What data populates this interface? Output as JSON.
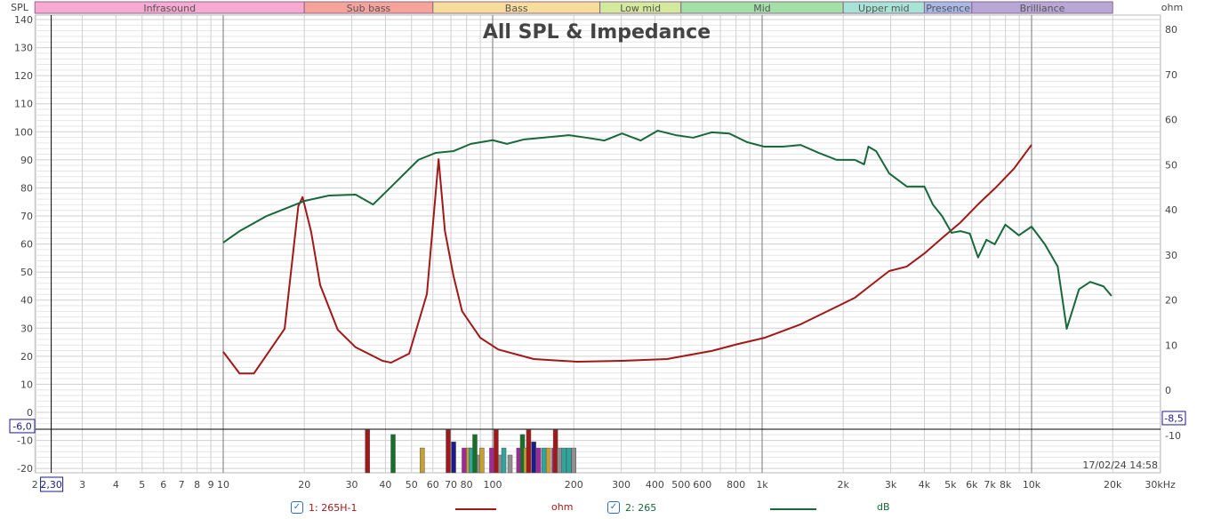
{
  "chart_data": {
    "type": "line",
    "title": "All SPL & Impedance",
    "x_unit_label": "kHz",
    "left_axis_label": "SPL",
    "right_axis_label": "ohm",
    "x_scale": "log",
    "xlim": [
      2,
      30000
    ],
    "ylim_left": [
      -22,
      142
    ],
    "ylim_right": [
      -18,
      82
    ],
    "x_ticks": [
      {
        "v": 2,
        "t": "2"
      },
      {
        "v": 3,
        "t": "3"
      },
      {
        "v": 4,
        "t": "4"
      },
      {
        "v": 5,
        "t": "5"
      },
      {
        "v": 6,
        "t": "6"
      },
      {
        "v": 7,
        "t": "7"
      },
      {
        "v": 8,
        "t": "8"
      },
      {
        "v": 9,
        "t": "9"
      },
      {
        "v": 10,
        "t": "10"
      },
      {
        "v": 20,
        "t": "20"
      },
      {
        "v": 30,
        "t": "30"
      },
      {
        "v": 40,
        "t": "40"
      },
      {
        "v": 50,
        "t": "50"
      },
      {
        "v": 60,
        "t": "60"
      },
      {
        "v": 70,
        "t": "70"
      },
      {
        "v": 80,
        "t": "80"
      },
      {
        "v": 100,
        "t": "100"
      },
      {
        "v": 200,
        "t": "200"
      },
      {
        "v": 300,
        "t": "300"
      },
      {
        "v": 400,
        "t": "400"
      },
      {
        "v": 500,
        "t": "500"
      },
      {
        "v": 600,
        "t": "600"
      },
      {
        "v": 800,
        "t": "800"
      },
      {
        "v": 1000,
        "t": "1k"
      },
      {
        "v": 2000,
        "t": "2k"
      },
      {
        "v": 3000,
        "t": "3k"
      },
      {
        "v": 4000,
        "t": "4k"
      },
      {
        "v": 5000,
        "t": "5k"
      },
      {
        "v": 6000,
        "t": "6k"
      },
      {
        "v": 7000,
        "t": "7k"
      },
      {
        "v": 8000,
        "t": "8k"
      },
      {
        "v": 10000,
        "t": "10k"
      },
      {
        "v": 20000,
        "t": "20k"
      },
      {
        "v": 30000,
        "t": "30kHz"
      }
    ],
    "left_ticks": [
      140,
      130,
      120,
      110,
      100,
      90,
      80,
      70,
      60,
      50,
      40,
      30,
      20,
      10,
      0,
      -10,
      -20
    ],
    "right_ticks": [
      80,
      70,
      60,
      50,
      40,
      30,
      20,
      10,
      0,
      -10
    ],
    "bands": [
      {
        "name": "Infrasound",
        "from": 2,
        "to": 20,
        "color": "#f7a8d3"
      },
      {
        "name": "Sub bass",
        "from": 20,
        "to": 60,
        "color": "#f6a39c"
      },
      {
        "name": "Bass",
        "from": 60,
        "to": 250,
        "color": "#f7dd9c"
      },
      {
        "name": "Low mid",
        "from": 250,
        "to": 500,
        "color": "#d3ea9c"
      },
      {
        "name": "Mid",
        "from": 500,
        "to": 2000,
        "color": "#a2e0a8"
      },
      {
        "name": "Upper mid",
        "from": 2000,
        "to": 4000,
        "color": "#a7e4d6"
      },
      {
        "name": "Presence",
        "from": 4000,
        "to": 6000,
        "color": "#a9b8e6"
      },
      {
        "name": "Brilliance",
        "from": 6000,
        "to": 20000,
        "color": "#b7a6d6"
      }
    ],
    "series": [
      {
        "name": "1: 265H-1",
        "unit": "ohm",
        "axis": "right",
        "color": "#a01818",
        "x": [
          10,
          11.5,
          13,
          16.9,
          19,
          19.7,
          21.2,
          22.9,
          26.6,
          31,
          39,
          42,
          49,
          57,
          63,
          66.5,
          71.5,
          77,
          90,
          105,
          142,
          206,
          302,
          444,
          650,
          810,
          1020,
          1390,
          1890,
          2210,
          2550,
          2960,
          3440,
          4000,
          4650,
          5450,
          6330,
          7300,
          8600,
          10000
        ],
        "y": [
          8.5,
          3.7,
          3.7,
          13.6,
          40.8,
          42.8,
          35.1,
          23.3,
          13.4,
          9.5,
          6.5,
          6.1,
          8.1,
          21.3,
          51.2,
          35.3,
          25.4,
          17.5,
          11.6,
          9.0,
          6.9,
          6.3,
          6.5,
          6.9,
          8.7,
          10.2,
          11.6,
          14.6,
          18.5,
          20.5,
          23.4,
          26.4,
          27.4,
          30.3,
          33.7,
          37.2,
          41.2,
          44.7,
          49.1,
          54.4
        ]
      },
      {
        "name": "2: 265",
        "unit": "dB",
        "axis": "left",
        "color": "#17683a",
        "x": [
          10,
          11.5,
          14.5,
          16.9,
          20.1,
          24.7,
          31,
          36,
          42,
          53,
          61.5,
          71.5,
          83,
          100,
          113,
          131,
          192,
          223,
          260,
          302,
          354,
          410,
          478,
          555,
          650,
          755,
          880,
          1020,
          1190,
          1390,
          1620,
          1890,
          2210,
          2390,
          2480,
          2650,
          2960,
          3440,
          4000,
          4300,
          4650,
          5050,
          5450,
          5900,
          6330,
          6800,
          7300,
          7990,
          8970,
          10000,
          11200,
          12500,
          13500,
          15000,
          16500,
          18500,
          19800
        ],
        "y": [
          60.5,
          64.6,
          70,
          72.5,
          75.4,
          77.3,
          77.6,
          74.1,
          80.4,
          90,
          92.5,
          93.1,
          95.7,
          97,
          95.7,
          97.3,
          98.8,
          97.9,
          96.9,
          99.4,
          96.9,
          100.4,
          98.8,
          97.9,
          99.8,
          99.4,
          96.3,
          94.7,
          94.7,
          95.3,
          92.5,
          90,
          90,
          88.4,
          94.7,
          93.1,
          85.2,
          80.5,
          80.5,
          74.1,
          70,
          64,
          64.6,
          63.7,
          55.2,
          61.5,
          59.9,
          66.9,
          63.1,
          66.2,
          59.9,
          52,
          29.8,
          43.9,
          46.5,
          44.9,
          41.5
        ]
      }
    ],
    "bars": [
      {
        "f": 34.3,
        "v": -6.3,
        "c": "#a01818"
      },
      {
        "f": 42.7,
        "v": -7.9,
        "c": "#17702a"
      },
      {
        "f": 54.8,
        "v": -12.7,
        "c": "#c8a030"
      },
      {
        "f": 68.4,
        "v": -6.3,
        "c": "#a01818"
      },
      {
        "f": 71.6,
        "v": -10.5,
        "c": "#1a1a8c"
      },
      {
        "f": 78.4,
        "v": -12.7,
        "c": "#a0289a"
      },
      {
        "f": 81.4,
        "v": -12.7,
        "c": "#c8a030"
      },
      {
        "f": 83.3,
        "v": -12.7,
        "c": "#2aa8a0"
      },
      {
        "f": 85.9,
        "v": -7.9,
        "c": "#17702a"
      },
      {
        "f": 89.2,
        "v": -15.2,
        "c": "#909090"
      },
      {
        "f": 91.2,
        "v": -12.7,
        "c": "#c8a030"
      },
      {
        "f": 99.2,
        "v": -12.7,
        "c": "#a0289a"
      },
      {
        "f": 103,
        "v": -6.3,
        "c": "#a01818"
      },
      {
        "f": 107,
        "v": -15.2,
        "c": "#909090"
      },
      {
        "f": 110,
        "v": -12.7,
        "c": "#2aa8a0"
      },
      {
        "f": 116,
        "v": -15.2,
        "c": "#909090"
      },
      {
        "f": 125,
        "v": -12.7,
        "c": "#a0289a"
      },
      {
        "f": 129,
        "v": -7.9,
        "c": "#17702a"
      },
      {
        "f": 133,
        "v": -12.7,
        "c": "#c8a030"
      },
      {
        "f": 136,
        "v": -6.3,
        "c": "#a01818"
      },
      {
        "f": 142,
        "v": -10.5,
        "c": "#1a1a8c"
      },
      {
        "f": 148,
        "v": -12.7,
        "c": "#a0289a"
      },
      {
        "f": 155,
        "v": -12.7,
        "c": "#2aa8a0"
      },
      {
        "f": 161,
        "v": -12.7,
        "c": "#c8a030"
      },
      {
        "f": 169,
        "v": -12.7,
        "c": "#a0289a"
      },
      {
        "f": 171,
        "v": -6.3,
        "c": "#a01818"
      },
      {
        "f": 177,
        "v": -12.7,
        "c": "#909090"
      },
      {
        "f": 184,
        "v": -12.7,
        "c": "#2aa8a0"
      },
      {
        "f": 192,
        "v": -12.7,
        "c": "#2aa8a0"
      },
      {
        "f": 200,
        "v": -12.7,
        "c": "#909090"
      }
    ],
    "cursor": {
      "freq_label": "2,30",
      "freq": 2.3,
      "left_value_label": "-6,0",
      "left_value": -6.0,
      "right_value_label": "-8,5"
    },
    "timestamp": "17/02/24 14:58"
  },
  "legend": {
    "series1_label": "1: 265H-1",
    "series1_unit": "ohm",
    "series2_label": "2: 265",
    "series2_unit": "dB",
    "check_glyph": "✓"
  }
}
